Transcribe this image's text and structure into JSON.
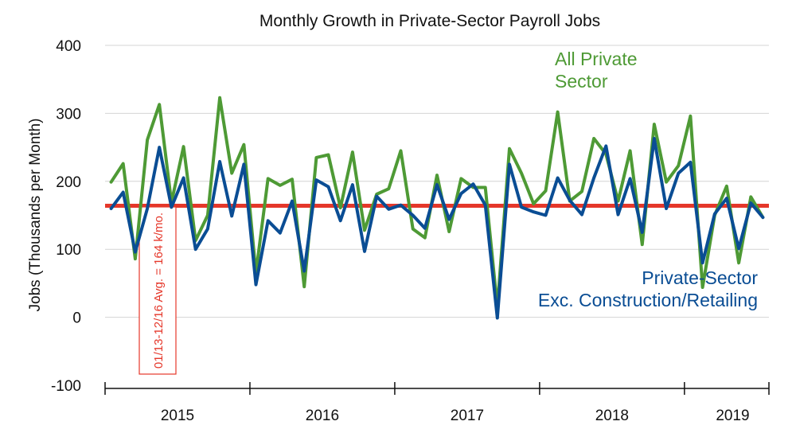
{
  "chart_data": {
    "type": "line",
    "title": "Monthly Growth in Private-Sector Payroll Jobs",
    "ylabel": "Jobs (Thousands per Month)",
    "ylim": [
      -100,
      400
    ],
    "yticks": [
      -100,
      0,
      100,
      200,
      300,
      400
    ],
    "grid": "horizontal",
    "xlim": [
      -0.5,
      54.5
    ],
    "year_labels": [
      {
        "label": "2015",
        "center": 5.5
      },
      {
        "label": "2016",
        "center": 17.5
      },
      {
        "label": "2017",
        "center": 29.5
      },
      {
        "label": "2018",
        "center": 41.5
      },
      {
        "label": "2019",
        "center": 51.5
      }
    ],
    "year_boundaries": [
      11.5,
      23.5,
      35.5,
      47.5
    ],
    "average": {
      "value": 164,
      "label": "01/13-12/16 Avg. = 164 k/mo.",
      "color": "#e5372a"
    },
    "series": [
      {
        "name": "All Private Sector",
        "label_lines": [
          "All Private",
          "Sector"
        ],
        "color": "#4e9a35",
        "values": [
          199,
          226,
          86,
          261,
          313,
          169,
          251,
          113,
          150,
          323,
          212,
          254,
          65,
          204,
          194,
          203,
          45,
          235,
          239,
          161,
          243,
          128,
          181,
          189,
          245,
          130,
          117,
          209,
          126,
          204,
          191,
          191,
          15,
          248,
          212,
          167,
          186,
          302,
          171,
          185,
          263,
          240,
          171,
          245,
          107,
          284,
          199,
          223,
          296,
          44,
          150,
          193,
          80,
          177,
          147
        ]
      },
      {
        "name": "Private-Sector Exc. Construction/Retailing",
        "label_lines": [
          "Private-Sector",
          "Exc. Construction/Retailing"
        ],
        "color": "#0a4d94",
        "values": [
          160,
          184,
          96,
          160,
          250,
          162,
          205,
          100,
          130,
          229,
          149,
          225,
          48,
          142,
          124,
          171,
          68,
          202,
          192,
          142,
          195,
          97,
          178,
          159,
          165,
          150,
          131,
          195,
          144,
          182,
          196,
          165,
          -1,
          225,
          162,
          155,
          150,
          205,
          172,
          151,
          205,
          252,
          151,
          204,
          125,
          263,
          160,
          212,
          228,
          80,
          152,
          175,
          101,
          168,
          147
        ]
      }
    ]
  }
}
